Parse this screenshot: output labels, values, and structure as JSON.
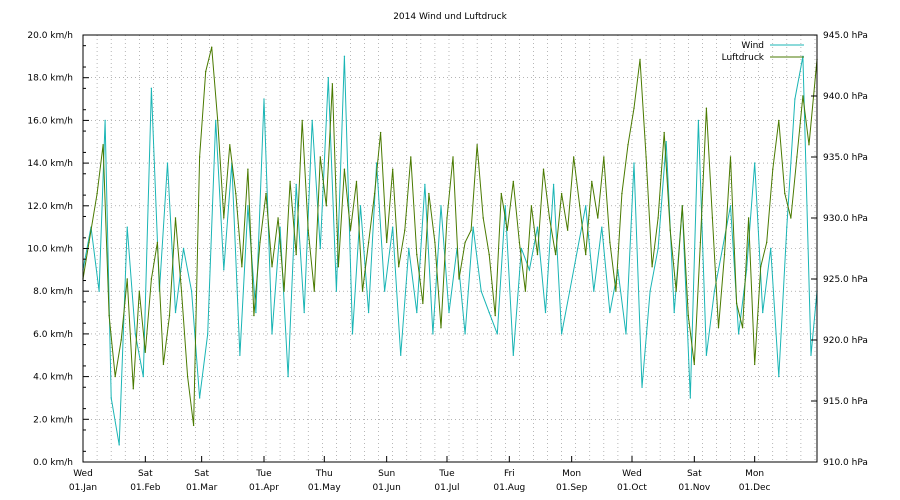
{
  "chart_data": {
    "type": "line",
    "title": "2014 Wind und Luftdruck",
    "xlabel": "",
    "ylabel": "",
    "grid": true,
    "legend_position": "top-right",
    "x_ticks": [
      {
        "day": "Wed",
        "date": "01.Jan"
      },
      {
        "day": "Sat",
        "date": "01.Feb"
      },
      {
        "day": "Sat",
        "date": "01.Mar"
      },
      {
        "day": "Tue",
        "date": "01.Apr"
      },
      {
        "day": "Thu",
        "date": "01.May"
      },
      {
        "day": "Sun",
        "date": "01.Jun"
      },
      {
        "day": "Tue",
        "date": "01.Jul"
      },
      {
        "day": "Fri",
        "date": "01.Aug"
      },
      {
        "day": "Mon",
        "date": "01.Sep"
      },
      {
        "day": "Wed",
        "date": "01.Oct"
      },
      {
        "day": "Sat",
        "date": "01.Nov"
      },
      {
        "day": "Mon",
        "date": "01.Dec"
      }
    ],
    "x_tick_days": [
      0,
      31,
      59,
      90,
      120,
      151,
      181,
      212,
      243,
      273,
      304,
      334
    ],
    "x_range_days": [
      0,
      365
    ],
    "y_left": {
      "unit": "km/h",
      "range": [
        0,
        20
      ],
      "tick_labels": [
        "0.0 km/h",
        "2.0 km/h",
        "4.0 km/h",
        "6.0 km/h",
        "8.0 km/h",
        "10.0 km/h",
        "12.0 km/h",
        "14.0 km/h",
        "16.0 km/h",
        "18.0 km/h",
        "20.0 km/h"
      ]
    },
    "y_right": {
      "unit": "hPa",
      "range": [
        910,
        945
      ],
      "tick_labels": [
        "910.0 hPa",
        "915.0 hPa",
        "920.0 hPa",
        "925.0 hPa",
        "930.0 hPa",
        "935.0 hPa",
        "940.0 hPa",
        "945.0 hPa"
      ]
    },
    "series": [
      {
        "name": "Wind",
        "axis": "left",
        "color": "#1ab5b5",
        "x": [
          0,
          4,
          8,
          11,
          14,
          18,
          22,
          26,
          30,
          34,
          38,
          42,
          46,
          50,
          54,
          58,
          62,
          66,
          70,
          74,
          78,
          82,
          86,
          90,
          94,
          98,
          102,
          106,
          110,
          114,
          118,
          122,
          126,
          130,
          134,
          138,
          142,
          146,
          150,
          154,
          158,
          162,
          166,
          170,
          174,
          178,
          182,
          186,
          190,
          194,
          198,
          202,
          206,
          210,
          214,
          218,
          222,
          226,
          230,
          234,
          238,
          242,
          246,
          250,
          254,
          258,
          262,
          266,
          270,
          274,
          278,
          282,
          286,
          290,
          294,
          298,
          302,
          306,
          310,
          314,
          318,
          322,
          326,
          330,
          334,
          338,
          342,
          346,
          350,
          354,
          358,
          362,
          365
        ],
        "values": [
          9,
          11,
          8,
          16,
          3,
          0.8,
          11,
          6,
          4,
          17.5,
          8,
          14,
          7,
          10,
          8,
          3,
          6,
          16,
          9,
          14,
          5,
          12,
          7,
          17,
          6,
          11,
          4,
          13,
          7,
          16,
          10,
          18,
          8,
          19,
          6,
          12,
          7,
          14,
          8,
          11,
          5,
          10,
          7,
          13,
          6,
          12,
          7,
          10,
          6,
          11,
          8,
          7,
          6,
          12,
          5,
          10,
          9,
          11,
          7,
          13,
          6,
          8,
          10,
          12,
          8,
          11,
          7,
          9,
          6,
          14,
          3.5,
          8,
          10,
          15,
          7,
          12,
          3,
          16,
          5,
          8,
          10,
          12,
          6,
          9,
          14,
          7,
          10,
          4,
          11,
          17,
          19,
          5,
          8
        ]
      },
      {
        "name": "Luftdruck",
        "axis": "right",
        "color": "#4a7a00",
        "x": [
          0,
          3,
          7,
          10,
          13,
          16,
          19,
          22,
          25,
          28,
          31,
          34,
          37,
          40,
          43,
          46,
          49,
          52,
          55,
          58,
          61,
          64,
          67,
          70,
          73,
          76,
          79,
          82,
          85,
          88,
          91,
          94,
          97,
          100,
          103,
          106,
          109,
          112,
          115,
          118,
          121,
          124,
          127,
          130,
          133,
          136,
          139,
          142,
          145,
          148,
          151,
          154,
          157,
          160,
          163,
          166,
          169,
          172,
          175,
          178,
          181,
          184,
          187,
          190,
          193,
          196,
          199,
          202,
          205,
          208,
          211,
          214,
          217,
          220,
          223,
          226,
          229,
          232,
          235,
          238,
          241,
          244,
          247,
          250,
          253,
          256,
          259,
          262,
          265,
          268,
          271,
          274,
          277,
          280,
          283,
          286,
          289,
          292,
          295,
          298,
          301,
          304,
          307,
          310,
          313,
          316,
          319,
          322,
          325,
          328,
          331,
          334,
          337,
          340,
          343,
          346,
          349,
          352,
          355,
          358,
          361,
          365
        ],
        "values": [
          925,
          928,
          932,
          936,
          922,
          917,
          920,
          925,
          916,
          924,
          919,
          925,
          928,
          918,
          922,
          930,
          924,
          917,
          913,
          935,
          942,
          944,
          938,
          930,
          936,
          932,
          926,
          934,
          922,
          928,
          932,
          926,
          930,
          924,
          933,
          927,
          938,
          929,
          924,
          935,
          931,
          941,
          926,
          934,
          929,
          933,
          924,
          928,
          932,
          937,
          928,
          934,
          926,
          929,
          935,
          927,
          923,
          932,
          928,
          921,
          930,
          935,
          925,
          928,
          929,
          936,
          930,
          927,
          922,
          932,
          929,
          933,
          928,
          924,
          931,
          927,
          934,
          930,
          927,
          932,
          929,
          935,
          931,
          927,
          933,
          930,
          935,
          928,
          924,
          932,
          936,
          939,
          943,
          935,
          926,
          930,
          937,
          929,
          924,
          931,
          922,
          918,
          928,
          939,
          930,
          921,
          927,
          935,
          923,
          921,
          930,
          918,
          926,
          928,
          934,
          938,
          932,
          930,
          935,
          940,
          936,
          943
        ]
      }
    ]
  }
}
